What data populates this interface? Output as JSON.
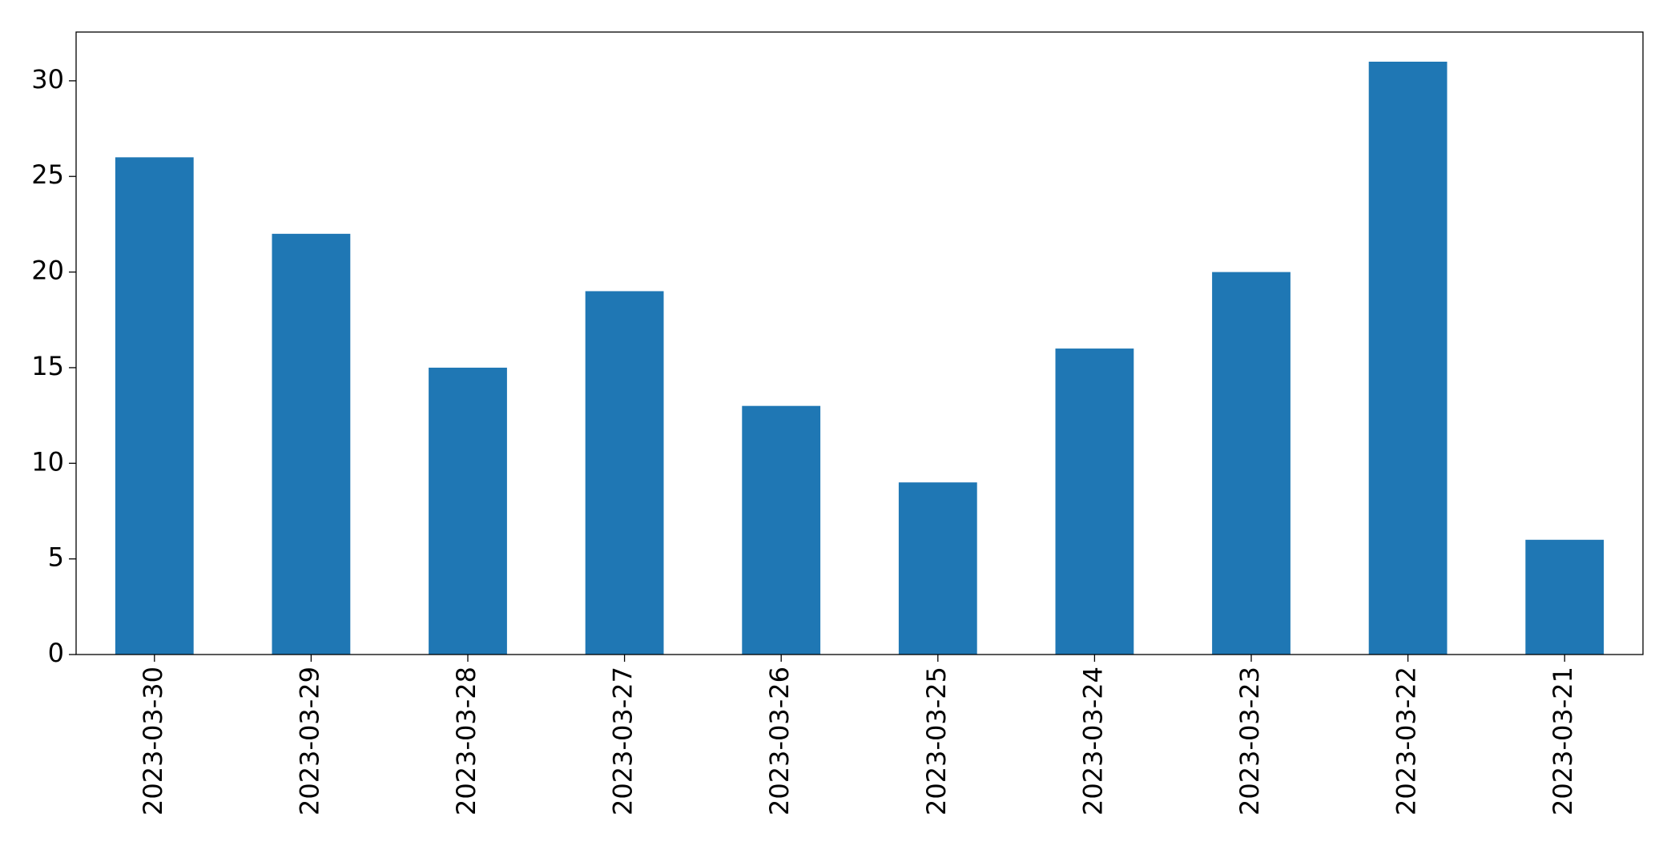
{
  "chart_data": {
    "type": "bar",
    "categories": [
      "2023-03-30",
      "2023-03-29",
      "2023-03-28",
      "2023-03-27",
      "2023-03-26",
      "2023-03-25",
      "2023-03-24",
      "2023-03-23",
      "2023-03-22",
      "2023-03-21"
    ],
    "values": [
      26,
      22,
      15,
      19,
      13,
      9,
      16,
      20,
      31,
      6
    ],
    "color": "#1f77b4",
    "ylim": [
      0,
      32.55
    ],
    "yticks": [
      0,
      5,
      10,
      15,
      20,
      25,
      30
    ],
    "grid": false
  }
}
